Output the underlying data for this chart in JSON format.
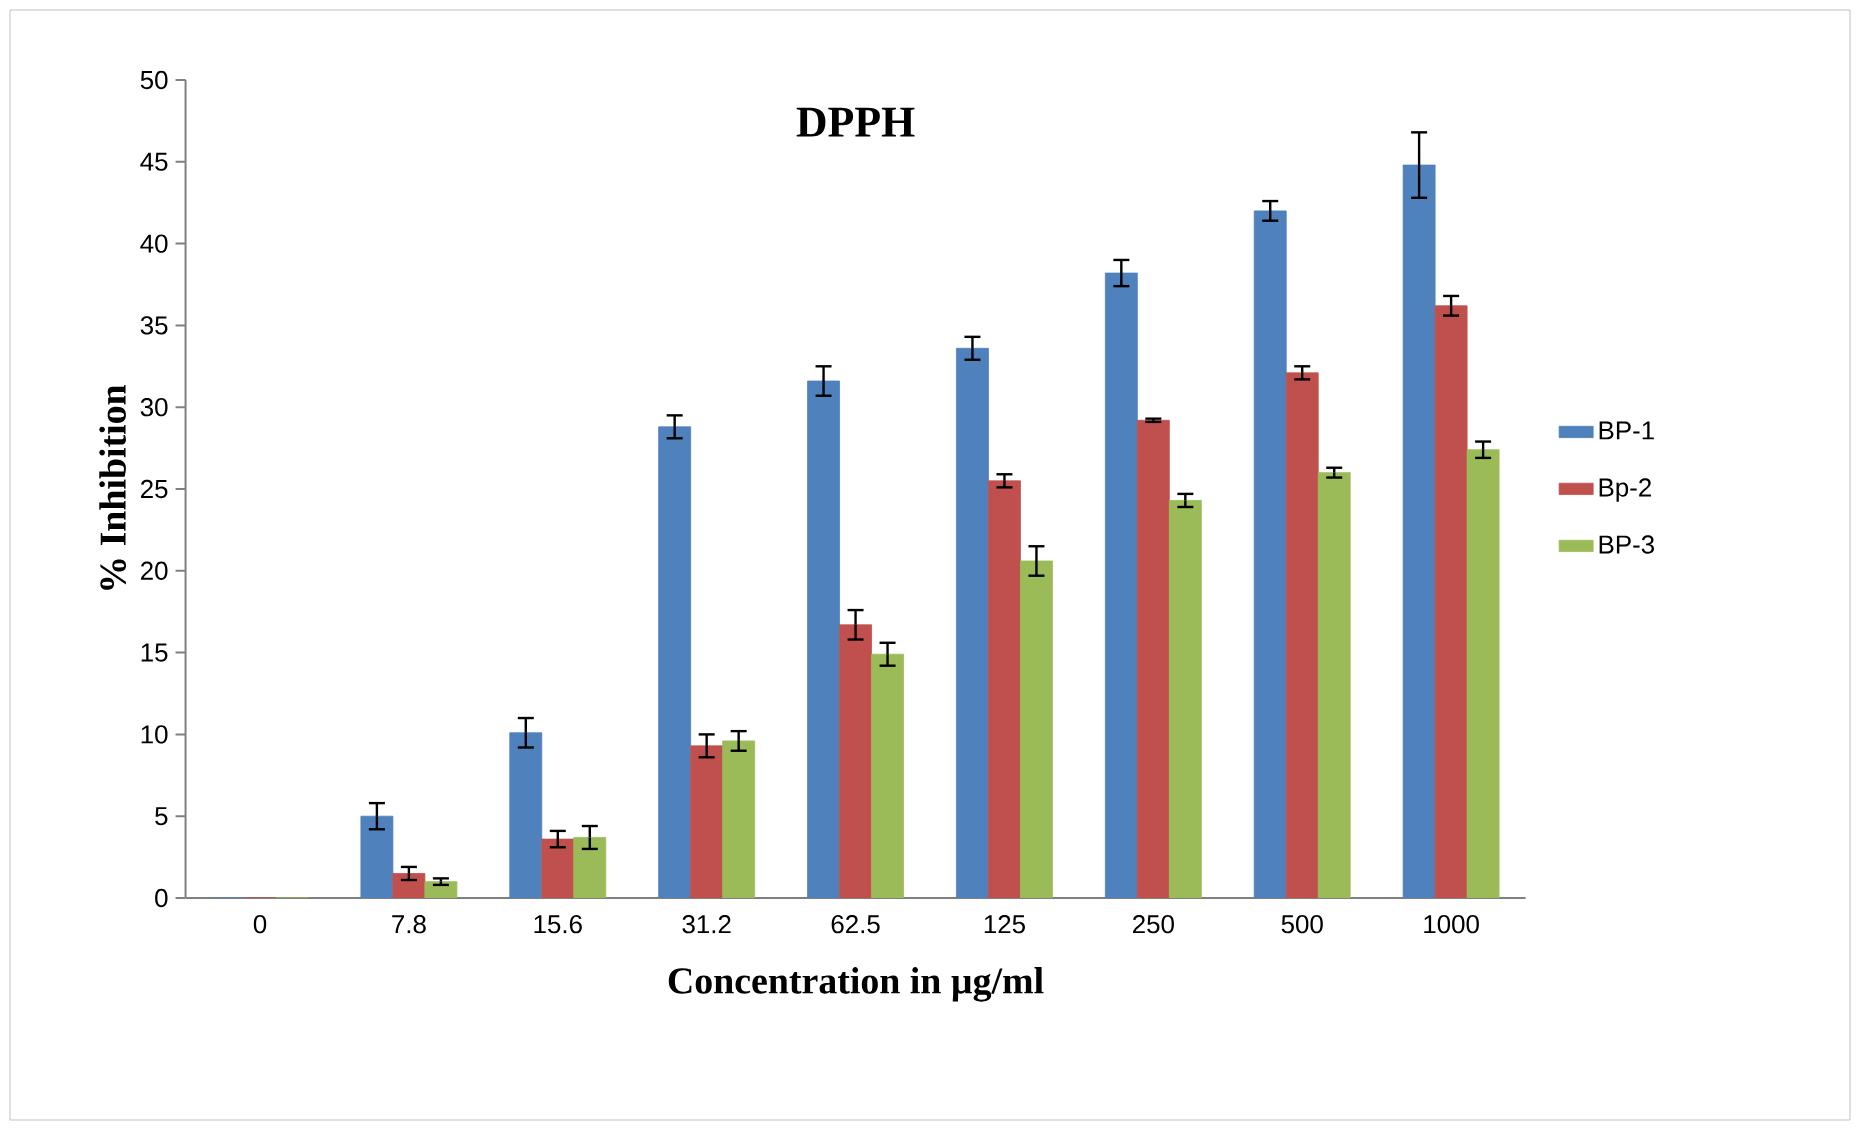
{
  "chart_data": {
    "type": "bar",
    "title": "DPPH",
    "xlabel": "Concentration in µg/ml",
    "ylabel": "% Inhibition",
    "categories": [
      "0",
      "7.8",
      "15.6",
      "31.2",
      "62.5",
      "125",
      "250",
      "500",
      "1000"
    ],
    "series": [
      {
        "name": "BP-1",
        "color": "#4f81bd",
        "values": [
          0,
          5.0,
          10.1,
          28.8,
          31.6,
          33.6,
          38.2,
          42.0,
          44.8
        ],
        "errors": [
          null,
          0.8,
          0.9,
          0.7,
          0.9,
          0.7,
          0.8,
          0.6,
          2.0
        ]
      },
      {
        "name": "Bp-2",
        "color": "#c0504d",
        "values": [
          0,
          1.5,
          3.6,
          9.3,
          16.7,
          25.5,
          29.2,
          32.1,
          36.2
        ],
        "errors": [
          null,
          0.4,
          0.5,
          0.7,
          0.9,
          0.4,
          0.1,
          0.4,
          0.6
        ]
      },
      {
        "name": "BP-3",
        "color": "#9bbb59",
        "values": [
          0,
          1.0,
          3.7,
          9.6,
          14.9,
          20.6,
          24.3,
          26.0,
          27.4
        ],
        "errors": [
          null,
          0.2,
          0.7,
          0.6,
          0.7,
          0.9,
          0.4,
          0.3,
          0.5
        ]
      }
    ],
    "ylim": [
      0,
      50
    ],
    "yticks": [
      0,
      5,
      10,
      15,
      20,
      25,
      30,
      35,
      40,
      45,
      50
    ],
    "grid": false,
    "legend": "right"
  }
}
